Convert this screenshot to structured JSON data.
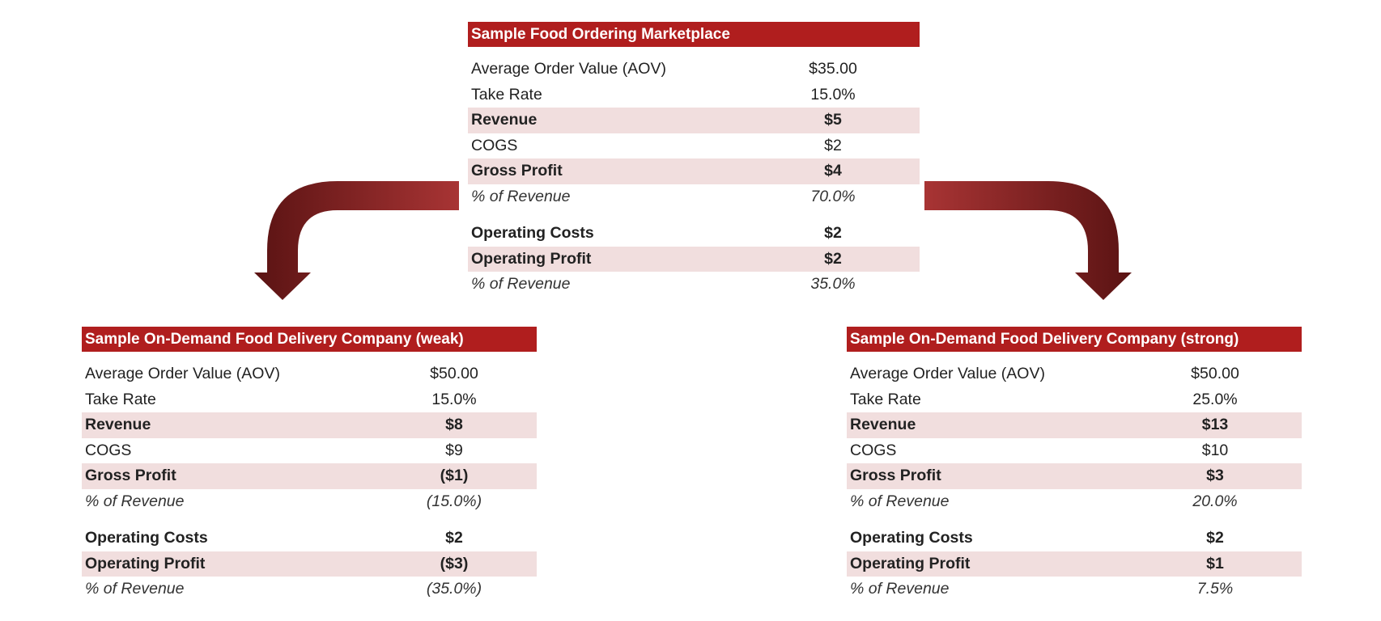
{
  "colors": {
    "header_bg": "#b01e1e",
    "header_text": "#ffffff",
    "shaded_row": "#f1dede",
    "arrow_light": "#9c3030",
    "arrow_dark": "#5c1414"
  },
  "icons": [
    "curved-arrow-left-icon",
    "curved-arrow-right-icon"
  ],
  "top": {
    "title": "Sample Food Ordering Marketplace",
    "rows": [
      {
        "label": "Average Order Value (AOV)",
        "value": "$35.00"
      },
      {
        "label": "Take Rate",
        "value": "15.0%"
      },
      {
        "label": "Revenue",
        "value": "$5"
      },
      {
        "label": "COGS",
        "value": "$2"
      },
      {
        "label": "Gross Profit",
        "value": "$4"
      },
      {
        "label": "% of Revenue",
        "value": "70.0%"
      },
      {
        "label": "Operating Costs",
        "value": "$2"
      },
      {
        "label": "Operating Profit",
        "value": "$2"
      },
      {
        "label": "% of Revenue",
        "value": "35.0%"
      }
    ]
  },
  "weak": {
    "title": "Sample On-Demand Food Delivery Company (weak)",
    "rows": [
      {
        "label": "Average Order Value (AOV)",
        "value": "$50.00"
      },
      {
        "label": "Take Rate",
        "value": "15.0%"
      },
      {
        "label": "Revenue",
        "value": "$8"
      },
      {
        "label": "COGS",
        "value": "$9"
      },
      {
        "label": "Gross Profit",
        "value": "($1)"
      },
      {
        "label": "% of Revenue",
        "value": "(15.0%)"
      },
      {
        "label": "Operating Costs",
        "value": "$2"
      },
      {
        "label": "Operating Profit",
        "value": "($3)"
      },
      {
        "label": "% of Revenue",
        "value": "(35.0%)"
      }
    ]
  },
  "strong": {
    "title": "Sample On-Demand Food Delivery Company (strong)",
    "rows": [
      {
        "label": "Average Order Value (AOV)",
        "value": "$50.00"
      },
      {
        "label": "Take Rate",
        "value": "25.0%"
      },
      {
        "label": "Revenue",
        "value": "$13"
      },
      {
        "label": "COGS",
        "value": "$10"
      },
      {
        "label": "Gross Profit",
        "value": "$3"
      },
      {
        "label": "% of Revenue",
        "value": "20.0%"
      },
      {
        "label": "Operating Costs",
        "value": "$2"
      },
      {
        "label": "Operating Profit",
        "value": "$1"
      },
      {
        "label": "% of Revenue",
        "value": "7.5%"
      }
    ]
  }
}
